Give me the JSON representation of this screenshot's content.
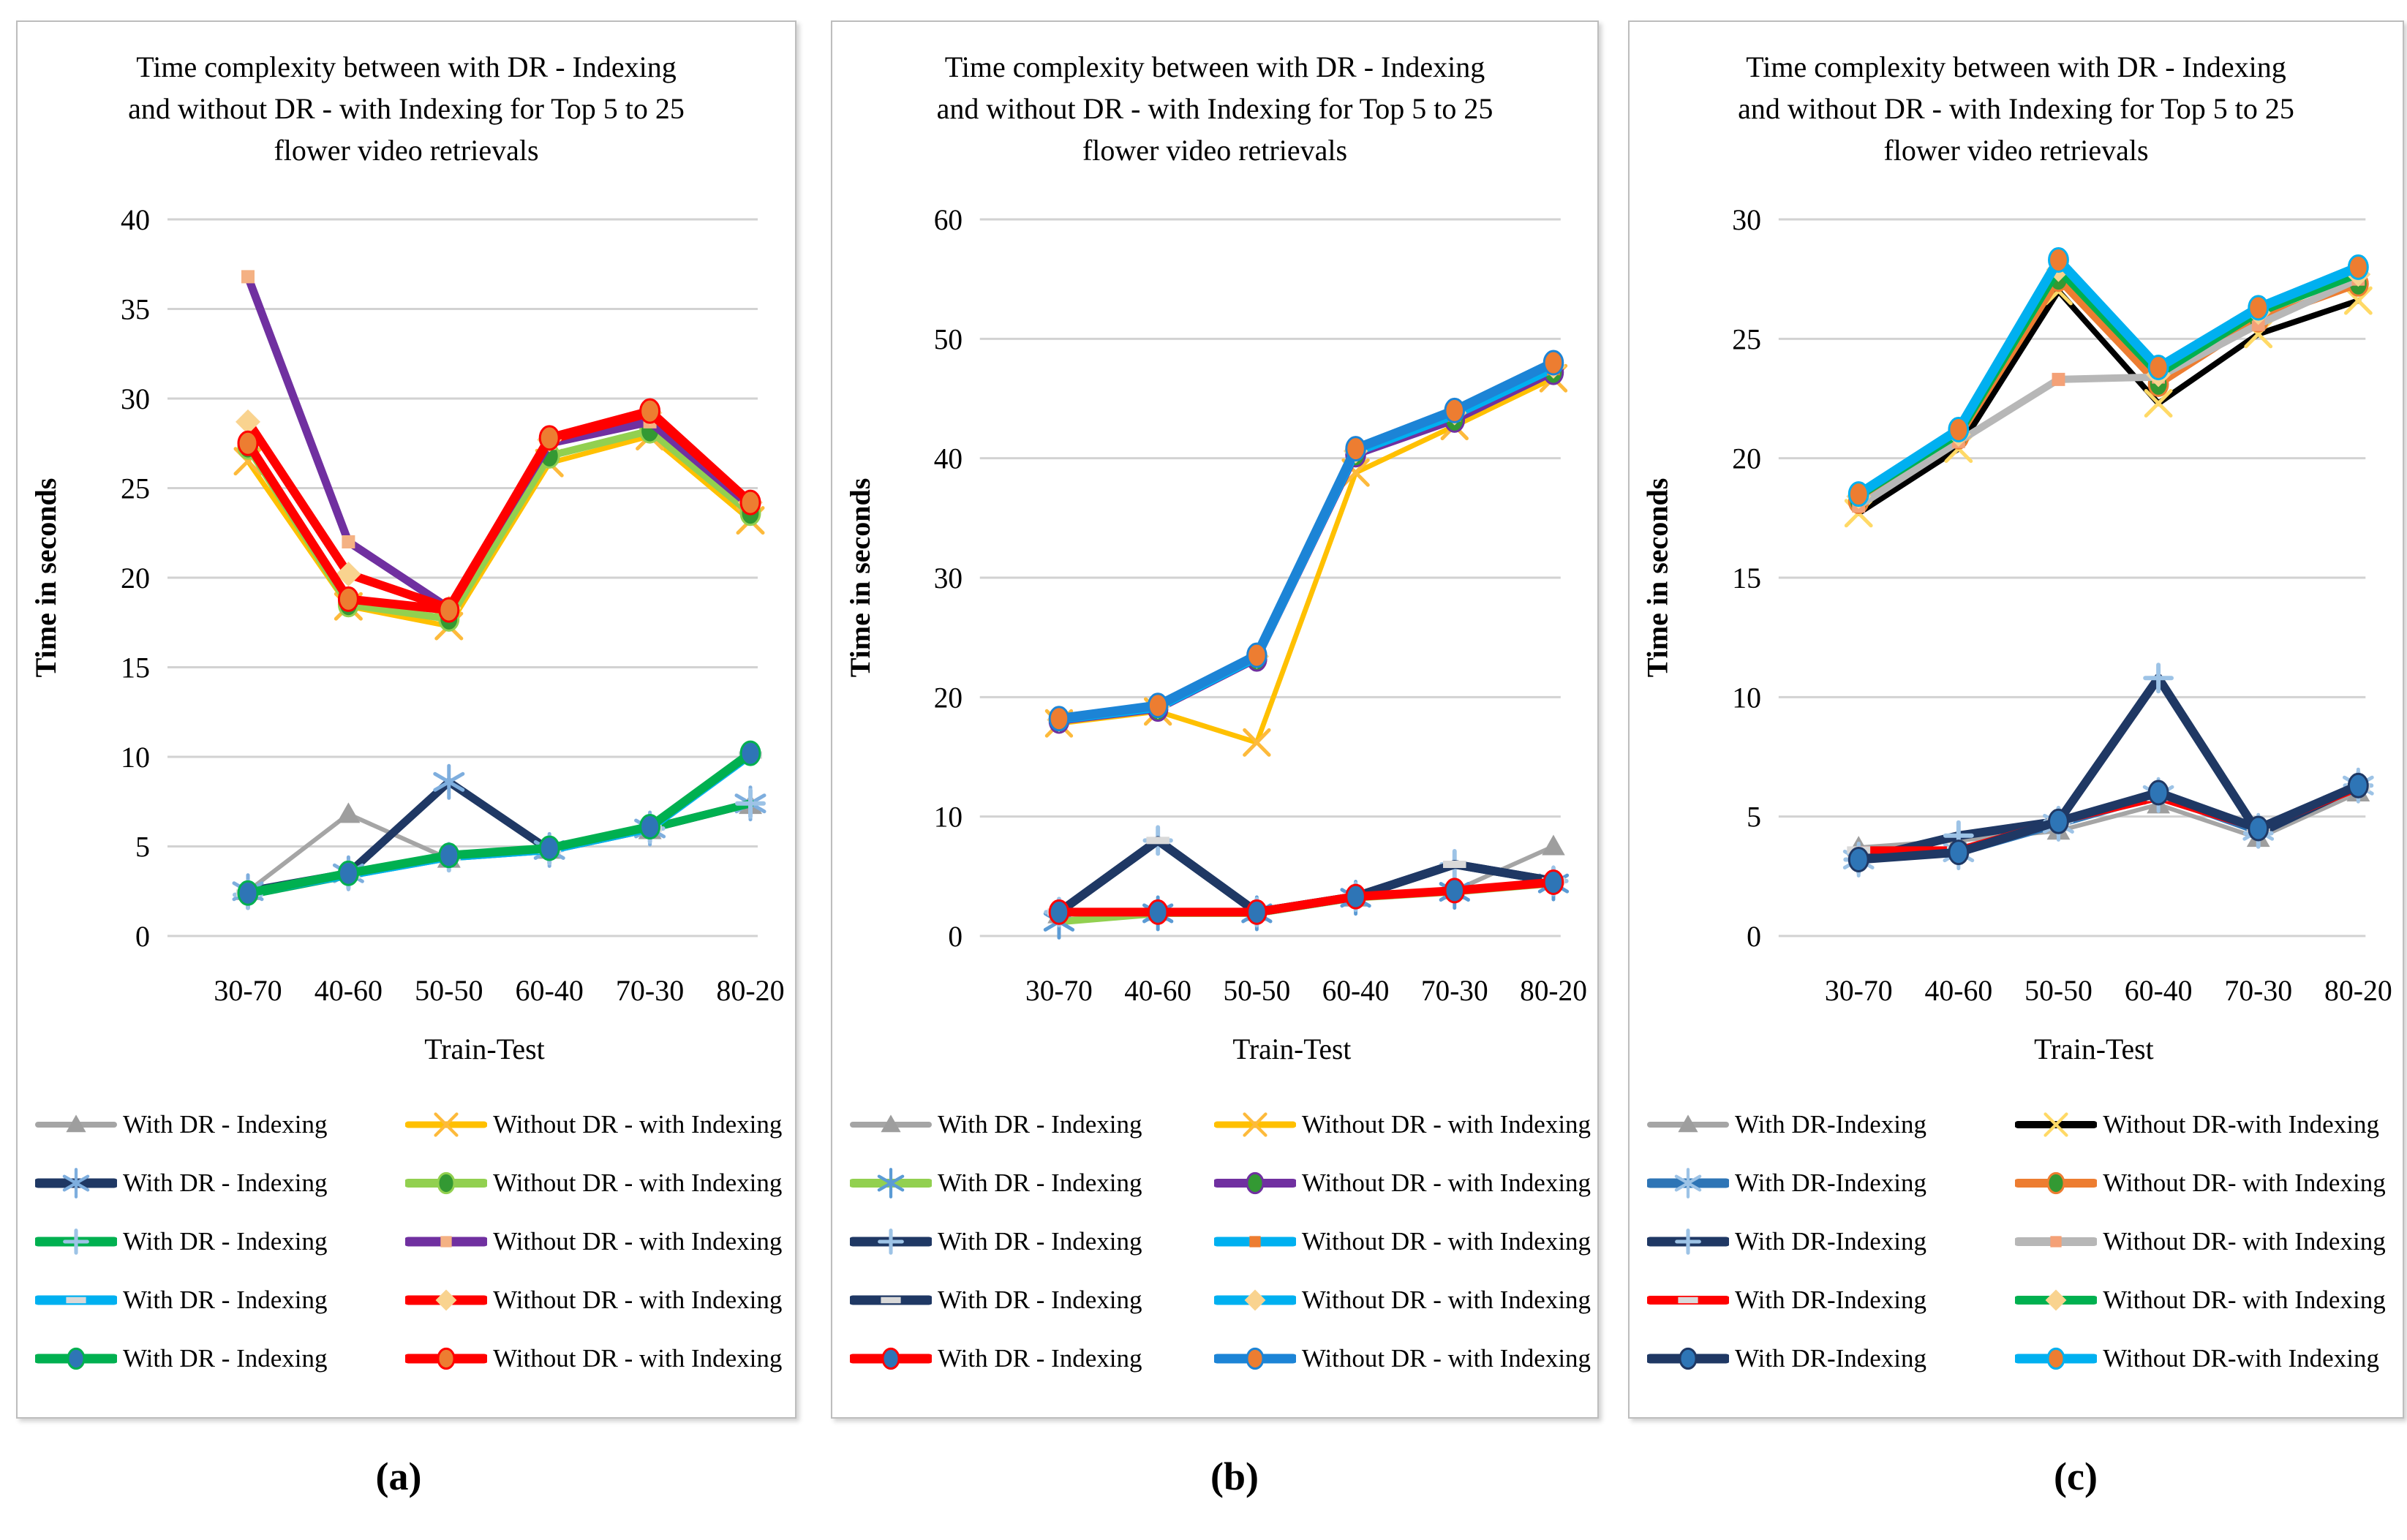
{
  "figure": {
    "background": "#ffffff"
  },
  "captions": [
    "(a)",
    "(b)",
    "(c)"
  ],
  "chart_data": [
    {
      "panel": "a",
      "type": "line",
      "title": "Time complexity between with DR - Indexing and without DR - with Indexing for Top 5 to 25 flower video retrievals",
      "title_lines": [
        "Time complexity between with DR - Indexing",
        "and without DR - with Indexing for Top 5 to 25",
        "flower video retrievals"
      ],
      "xlabel": "Train-Test",
      "ylabel": "Time in seconds",
      "categories": [
        "30-70",
        "40-60",
        "50-50",
        "60-40",
        "70-30",
        "80-20"
      ],
      "ylim": [
        0,
        40
      ],
      "yticks": [
        0,
        5,
        10,
        15,
        20,
        25,
        30,
        35,
        40
      ],
      "grid": true,
      "legend_position": "bottom",
      "series": [
        {
          "name": "With DR - Indexing",
          "group": "with",
          "color": "#A5A5A5",
          "width": 6,
          "marker": "triangle",
          "marker_color": "#9E9E9E",
          "values": [
            2.5,
            6.8,
            4.3,
            4.8,
            5.9,
            7.3
          ]
        },
        {
          "name": "With DR - Indexing",
          "group": "with",
          "color": "#1F3864",
          "width": 11,
          "marker": "asterisk",
          "marker_color": "#7EAEDE",
          "values": [
            2.5,
            3.5,
            8.6,
            4.8,
            6.0,
            7.4
          ]
        },
        {
          "name": "With DR - Indexing",
          "group": "with",
          "color": "#00B050",
          "width": 11,
          "marker": "plus",
          "marker_color": "#9DC3E6",
          "values": [
            2.3,
            3.4,
            4.4,
            4.8,
            6.0,
            7.4
          ]
        },
        {
          "name": "With DR - Indexing",
          "group": "with",
          "color": "#00B0F0",
          "width": 11,
          "marker": "dash",
          "marker_color": "#D9D9D9",
          "values": [
            2.4,
            3.4,
            4.4,
            4.8,
            6.0,
            10.1
          ]
        },
        {
          "name": "With DR - Indexing",
          "group": "with",
          "color": "#00B050",
          "width": 12,
          "marker": "circle",
          "marker_color": "#2E75B6",
          "values": [
            2.4,
            3.5,
            4.5,
            4.9,
            6.1,
            10.2
          ]
        },
        {
          "name": "Without DR - with Indexing",
          "group": "without",
          "color": "#FFC000",
          "width": 7,
          "marker": "x",
          "marker_color": "#FDBA3B",
          "values": [
            26.5,
            18.4,
            17.3,
            26.4,
            27.9,
            23.2
          ]
        },
        {
          "name": "Without DR - with Indexing",
          "group": "without",
          "color": "#92D050",
          "width": 10,
          "marker": "circle",
          "marker_color": "#339933",
          "values": [
            27.3,
            18.5,
            17.7,
            26.8,
            28.2,
            23.6
          ]
        },
        {
          "name": "Without DR - with Indexing",
          "group": "without",
          "color": "#7030A0",
          "width": 11,
          "marker": "square",
          "marker_color": "#F4B183",
          "values": [
            36.8,
            22.0,
            18.3,
            27.5,
            28.7,
            24.0
          ]
        },
        {
          "name": "Without DR - with Indexing",
          "group": "without",
          "color": "#FF0000",
          "width": 12,
          "marker": "diamond",
          "marker_color": "#F9D38F",
          "values": [
            28.7,
            20.2,
            18.3,
            27.7,
            29.2,
            24.2
          ]
        },
        {
          "name": "Without DR - with Indexing",
          "group": "without",
          "color": "#FF0000",
          "width": 12,
          "marker": "circle",
          "marker_color": "#ED7D31",
          "values": [
            27.5,
            18.8,
            18.2,
            27.8,
            29.3,
            24.2
          ]
        }
      ]
    },
    {
      "panel": "b",
      "type": "line",
      "title": "Time complexity between with DR - Indexing and without DR - with Indexing for Top 5 to 25 flower video retrievals",
      "title_lines": [
        "Time complexity between with DR - Indexing",
        "and without DR - with Indexing for Top 5 to 25",
        "flower video retrievals"
      ],
      "xlabel": "Train-Test",
      "ylabel": "Time in seconds",
      "categories": [
        "30-70",
        "40-60",
        "50-50",
        "60-40",
        "70-30",
        "80-20"
      ],
      "ylim": [
        0,
        60
      ],
      "yticks": [
        0,
        10,
        20,
        30,
        40,
        50,
        60
      ],
      "grid": true,
      "legend_position": "bottom",
      "series": [
        {
          "name": "With DR - Indexing",
          "group": "with",
          "color": "#A5A5A5",
          "width": 6,
          "marker": "triangle",
          "marker_color": "#9E9E9E",
          "values": [
            1.8,
            2.0,
            2.0,
            3.2,
            3.8,
            7.5
          ]
        },
        {
          "name": "With DR - Indexing",
          "group": "with",
          "color": "#92D050",
          "width": 10,
          "marker": "asterisk",
          "marker_color": "#5B9BD5",
          "values": [
            1.2,
            1.9,
            1.9,
            3.2,
            3.7,
            4.4
          ]
        },
        {
          "name": "With DR - Indexing",
          "group": "with",
          "color": "#1F3864",
          "width": 12,
          "marker": "plus",
          "marker_color": "#9DC3E6",
          "values": [
            2.0,
            8.0,
            2.0,
            3.3,
            6.0,
            4.6
          ]
        },
        {
          "name": "With DR - Indexing",
          "group": "with",
          "color": "#1F3864",
          "width": 12,
          "marker": "dash",
          "marker_color": "#D9D9D9",
          "values": [
            2.0,
            8.0,
            2.0,
            3.3,
            6.0,
            4.6
          ]
        },
        {
          "name": "With DR - Indexing",
          "group": "with",
          "color": "#FF0000",
          "width": 12,
          "marker": "circle",
          "marker_color": "#2E75B6",
          "values": [
            2.0,
            2.0,
            2.0,
            3.3,
            3.8,
            4.5
          ]
        },
        {
          "name": "Without DR - with Indexing",
          "group": "without",
          "color": "#FFC000",
          "width": 7,
          "marker": "x",
          "marker_color": "#FDBA3B",
          "values": [
            17.8,
            18.8,
            16.2,
            38.8,
            42.7,
            46.7
          ]
        },
        {
          "name": "Without DR - with Indexing",
          "group": "without",
          "color": "#7030A0",
          "width": 10,
          "marker": "circle",
          "marker_color": "#339933",
          "values": [
            18.0,
            19.0,
            23.2,
            40.3,
            43.2,
            47.2
          ]
        },
        {
          "name": "Without DR - with Indexing",
          "group": "without",
          "color": "#00B0F0",
          "width": 11,
          "marker": "square",
          "marker_color": "#ED7D31",
          "values": [
            18.1,
            19.1,
            23.3,
            40.5,
            43.6,
            47.5
          ]
        },
        {
          "name": "Without DR - with Indexing",
          "group": "without",
          "color": "#00B0F0",
          "width": 11,
          "marker": "diamond",
          "marker_color": "#F9D38F",
          "values": [
            18.1,
            19.2,
            23.4,
            40.6,
            43.8,
            47.7
          ]
        },
        {
          "name": "Without DR - with Indexing",
          "group": "without",
          "color": "#1C84D6",
          "width": 13,
          "marker": "circle",
          "marker_color": "#ED7D31",
          "values": [
            18.2,
            19.3,
            23.5,
            40.8,
            44.0,
            48.0
          ]
        }
      ]
    },
    {
      "panel": "c",
      "type": "line",
      "title": "Time complexity between with DR - Indexing and without DR - with Indexing for Top 5 to 25 flower video retrievals",
      "title_lines": [
        "Time complexity between with DR - Indexing",
        "and without DR - with Indexing for Top 5 to 25",
        "flower video retrievals"
      ],
      "xlabel": "Train-Test",
      "ylabel": "Time in seconds",
      "categories": [
        "30-70",
        "40-60",
        "50-50",
        "60-40",
        "70-30",
        "80-20"
      ],
      "ylim": [
        0,
        30
      ],
      "yticks": [
        0,
        5,
        10,
        15,
        20,
        25,
        30
      ],
      "grid": true,
      "legend_position": "bottom",
      "series": [
        {
          "name": "With DR-Indexing",
          "group": "with",
          "color": "#A5A5A5",
          "width": 6,
          "marker": "triangle",
          "marker_color": "#9E9E9E",
          "values": [
            3.7,
            4.0,
            4.4,
            5.5,
            4.1,
            6.0
          ]
        },
        {
          "name": "With DR-Indexing",
          "group": "with",
          "color": "#2E75B6",
          "width": 11,
          "marker": "asterisk",
          "marker_color": "#9DC3E6",
          "values": [
            3.2,
            3.5,
            4.7,
            5.9,
            4.4,
            6.3
          ]
        },
        {
          "name": "With DR-Indexing",
          "group": "with",
          "color": "#1F3864",
          "width": 12,
          "marker": "plus",
          "marker_color": "#9DC3E6",
          "values": [
            3.2,
            4.2,
            4.8,
            10.8,
            4.3,
            6.3
          ]
        },
        {
          "name": "With DR-Indexing",
          "group": "with",
          "color": "#FF0000",
          "width": 10,
          "marker": "dash",
          "marker_color": "#D9D9D9",
          "values": [
            3.6,
            3.6,
            4.8,
            5.8,
            4.5,
            6.2
          ]
        },
        {
          "name": "With DR-Indexing",
          "group": "with",
          "color": "#1F3864",
          "width": 12,
          "marker": "circle",
          "marker_color": "#2E75B6",
          "values": [
            3.2,
            3.5,
            4.8,
            6.0,
            4.5,
            6.3
          ]
        },
        {
          "name": "Without DR-with Indexing",
          "group": "without",
          "color": "#000000",
          "width": 8,
          "marker": "x",
          "marker_color": "#FFD966",
          "values": [
            17.7,
            20.4,
            27.0,
            22.3,
            25.2,
            26.6
          ]
        },
        {
          "name": "Without DR- with Indexing",
          "group": "without",
          "color": "#ED7D31",
          "width": 10,
          "marker": "circle",
          "marker_color": "#339933",
          "values": [
            18.2,
            20.9,
            27.5,
            23.1,
            25.8,
            27.3
          ]
        },
        {
          "name": "Without DR- with Indexing",
          "group": "without",
          "color": "#B7B7B7",
          "width": 10,
          "marker": "square",
          "marker_color": "#F4A177",
          "values": [
            18.0,
            20.7,
            23.3,
            23.4,
            25.6,
            27.5
          ]
        },
        {
          "name": "Without DR- with Indexing",
          "group": "without",
          "color": "#00B050",
          "width": 10,
          "marker": "diamond",
          "marker_color": "#F9D38F",
          "values": [
            18.4,
            21.0,
            27.9,
            23.5,
            26.1,
            27.7
          ]
        },
        {
          "name": "Without DR-with Indexing",
          "group": "without",
          "color": "#00B0F0",
          "width": 13,
          "marker": "circle",
          "marker_color": "#ED7D31",
          "values": [
            18.5,
            21.2,
            28.3,
            23.8,
            26.3,
            28.0
          ]
        }
      ]
    }
  ]
}
